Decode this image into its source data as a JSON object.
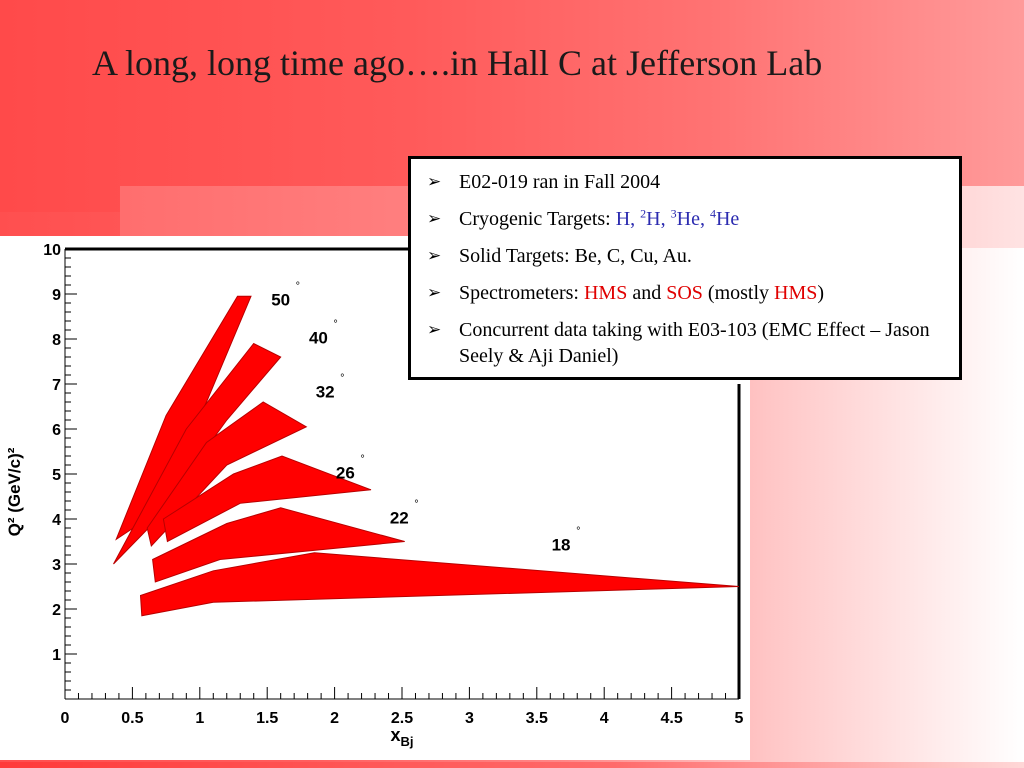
{
  "slide": {
    "title": "A long, long time ago….in Hall C at Jefferson Lab"
  },
  "infobox": {
    "items": [
      {
        "text": "E02-019 ran in Fall 2004"
      },
      {
        "prefix": "Cryogenic Targets: ",
        "targets": [
          "H",
          "2H",
          "3He",
          "4He"
        ],
        "targets_display": {
          "h": "H,",
          "h2_mass": "2",
          "h2": "H,",
          "he3_mass": "3",
          "he3": "He,",
          "he4_mass": "4",
          "he4": "He"
        }
      },
      {
        "text": "Solid Targets:  Be, C, Cu, Au."
      },
      {
        "prefix": "Spectrometers:  ",
        "hms": "HMS",
        "and": " and ",
        "sos": "SOS",
        "mostly_open": " (mostly ",
        "hms2": "HMS",
        "close": ")"
      },
      {
        "text": "Concurrent data taking with E03-103 (EMC Effect – Jason Seely & Aji Daniel)"
      }
    ],
    "bullet_icon": "arrow-bullet-icon"
  },
  "colors": {
    "region_fill": "#ff0000",
    "accent": "#ff4f4f"
  },
  "chart_data": {
    "type": "area",
    "xlabel": "x",
    "xlabel_sub": "Bj",
    "ylabel": "Q² (GeV/c)²",
    "xlim": [
      0,
      5
    ],
    "ylim": [
      0,
      10
    ],
    "xticks": [
      "0",
      "0.5",
      "1",
      "1.5",
      "2",
      "2.5",
      "3",
      "3.5",
      "4",
      "4.5",
      "5"
    ],
    "yticks": [
      "1",
      "2",
      "3",
      "4",
      "5",
      "6",
      "7",
      "8",
      "9",
      "10"
    ],
    "grid": false,
    "series": [
      {
        "name": "50",
        "label_pos": [
          1.6,
          8.75
        ],
        "points": [
          [
            0.38,
            3.55
          ],
          [
            0.75,
            6.3
          ],
          [
            1.28,
            8.95
          ],
          [
            1.38,
            8.95
          ],
          [
            1.05,
            6.6
          ],
          [
            0.66,
            4.1
          ]
        ]
      },
      {
        "name": "40",
        "label_pos": [
          1.88,
          7.9
        ],
        "points": [
          [
            0.36,
            3.0
          ],
          [
            0.9,
            6.0
          ],
          [
            1.4,
            7.9
          ],
          [
            1.6,
            7.6
          ],
          [
            1.2,
            6.2
          ],
          [
            0.62,
            3.8
          ]
        ]
      },
      {
        "name": "32",
        "label_pos": [
          1.93,
          6.7
        ],
        "points": [
          [
            0.61,
            3.8
          ],
          [
            1.05,
            5.7
          ],
          [
            1.47,
            6.6
          ],
          [
            1.79,
            6.05
          ],
          [
            1.2,
            5.2
          ],
          [
            0.64,
            3.4
          ]
        ]
      },
      {
        "name": "26",
        "label_pos": [
          2.08,
          4.9
        ],
        "points": [
          [
            0.73,
            4.0
          ],
          [
            1.25,
            5.0
          ],
          [
            1.61,
            5.4
          ],
          [
            2.27,
            4.65
          ],
          [
            1.3,
            4.35
          ],
          [
            0.76,
            3.5
          ]
        ]
      },
      {
        "name": "22",
        "label_pos": [
          2.48,
          3.9
        ],
        "points": [
          [
            0.65,
            3.1
          ],
          [
            1.2,
            3.9
          ],
          [
            1.6,
            4.25
          ],
          [
            2.52,
            3.5
          ],
          [
            1.15,
            3.1
          ],
          [
            0.67,
            2.6
          ]
        ]
      },
      {
        "name": "18",
        "label_pos": [
          3.68,
          3.3
        ],
        "points": [
          [
            0.56,
            2.3
          ],
          [
            1.1,
            2.85
          ],
          [
            1.85,
            3.25
          ],
          [
            5.0,
            2.5
          ],
          [
            1.1,
            2.15
          ],
          [
            0.57,
            1.85
          ]
        ]
      }
    ]
  }
}
